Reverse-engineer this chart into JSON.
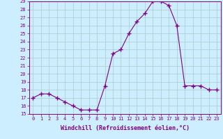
{
  "hours": [
    0,
    1,
    2,
    3,
    4,
    5,
    6,
    7,
    8,
    9,
    10,
    11,
    12,
    13,
    14,
    15,
    16,
    17,
    18,
    19,
    20,
    21,
    22,
    23
  ],
  "values": [
    17,
    17.5,
    17.5,
    17,
    16.5,
    16,
    15.5,
    15.5,
    15.5,
    18.5,
    22.5,
    23,
    25,
    26.5,
    27.5,
    29,
    29,
    28.5,
    26,
    18.5,
    18.5,
    18.5,
    18,
    18
  ],
  "line_color": "#800080",
  "marker": "+",
  "bg_color": "#cceeff",
  "grid_color": "#aacccc",
  "xlabel": "Windchill (Refroidissement éolien,°C)",
  "ylim": [
    15,
    29
  ],
  "xlim": [
    -0.5,
    23.5
  ],
  "yticks": [
    15,
    16,
    17,
    18,
    19,
    20,
    21,
    22,
    23,
    24,
    25,
    26,
    27,
    28,
    29
  ],
  "xticks": [
    0,
    1,
    2,
    3,
    4,
    5,
    6,
    7,
    8,
    9,
    10,
    11,
    12,
    13,
    14,
    15,
    16,
    17,
    18,
    19,
    20,
    21,
    22,
    23
  ],
  "tick_color": "#800080",
  "label_color": "#800080",
  "axis_color": "#800080",
  "tick_fontsize": 5,
  "xlabel_fontsize": 6,
  "marker_size": 4,
  "line_width": 0.8
}
